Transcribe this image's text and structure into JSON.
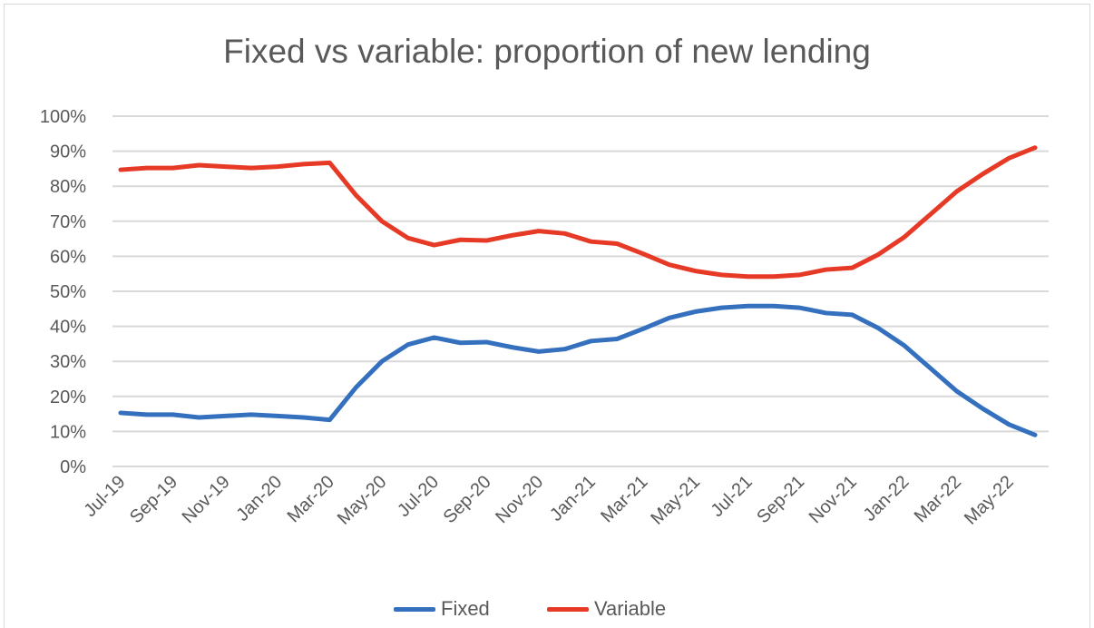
{
  "chart_data": {
    "type": "line",
    "title": "Fixed vs variable: proportion of new lending",
    "x": [
      "Jul-19",
      "Aug-19",
      "Sep-19",
      "Oct-19",
      "Nov-19",
      "Dec-19",
      "Jan-20",
      "Feb-20",
      "Mar-20",
      "Apr-20",
      "May-20",
      "Jun-20",
      "Jul-20",
      "Aug-20",
      "Sep-20",
      "Oct-20",
      "Nov-20",
      "Dec-20",
      "Jan-21",
      "Feb-21",
      "Mar-21",
      "Apr-21",
      "May-21",
      "Jun-21",
      "Jul-21",
      "Aug-21",
      "Sep-21",
      "Oct-21",
      "Nov-21",
      "Dec-21",
      "Jan-22",
      "Feb-22",
      "Mar-22",
      "Apr-22",
      "May-22",
      "Jun-22"
    ],
    "xtick_labels": [
      "Jul-19",
      "Sep-19",
      "Nov-19",
      "Jan-20",
      "Mar-20",
      "May-20",
      "Jul-20",
      "Sep-20",
      "Nov-20",
      "Jan-21",
      "Mar-21",
      "May-21",
      "Jul-21",
      "Sep-21",
      "Nov-21",
      "Jan-22",
      "Mar-22",
      "May-22"
    ],
    "ytick_labels": [
      "0%",
      "10%",
      "20%",
      "30%",
      "40%",
      "50%",
      "60%",
      "70%",
      "80%",
      "90%",
      "100%"
    ],
    "ylim": [
      0,
      100
    ],
    "grid": true,
    "legend": "bottom",
    "series": [
      {
        "name": "Fixed",
        "color": "#3470be",
        "values": [
          15.3,
          14.8,
          14.8,
          14.0,
          14.4,
          14.8,
          14.4,
          14.0,
          13.3,
          22.5,
          30.0,
          34.8,
          36.8,
          35.3,
          35.5,
          34.0,
          32.8,
          33.5,
          35.8,
          36.4,
          39.3,
          42.4,
          44.2,
          45.3,
          45.8,
          45.8,
          45.3,
          43.8,
          43.3,
          39.5,
          34.5,
          28.0,
          21.5,
          16.5,
          12.0,
          9.0
        ]
      },
      {
        "name": "Variable",
        "color": "#e63a26",
        "values": [
          84.7,
          85.2,
          85.2,
          86.0,
          85.6,
          85.2,
          85.6,
          86.3,
          86.7,
          77.5,
          70.0,
          65.2,
          63.2,
          64.7,
          64.5,
          66.0,
          67.2,
          66.5,
          64.2,
          63.6,
          60.7,
          57.6,
          55.8,
          54.7,
          54.2,
          54.2,
          54.7,
          56.2,
          56.7,
          60.5,
          65.5,
          72.0,
          78.5,
          83.5,
          88.0,
          91.0
        ]
      }
    ]
  }
}
